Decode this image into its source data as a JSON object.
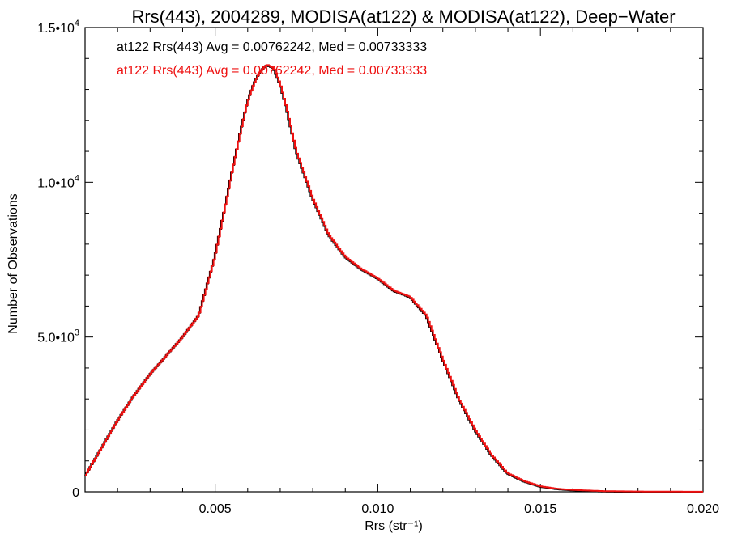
{
  "chart_data": {
    "type": "line",
    "title": "Rrs(443), 2004289, MODISA(at122) & MODISA(at122), Deep−Water",
    "xlabel": "Rrs (str⁻¹)",
    "ylabel": "Number of Observations",
    "xlim": [
      0.001,
      0.02
    ],
    "ylim": [
      0,
      15000
    ],
    "x_ticks": [
      0.005,
      0.01,
      0.015,
      0.02
    ],
    "x_tick_labels": [
      "0.005",
      "0.010",
      "0.015",
      "0.020"
    ],
    "y_ticks": [
      0,
      5000,
      10000,
      15000
    ],
    "y_tick_labels": [
      {
        "mant": "0",
        "exp": ""
      },
      {
        "mant": "5.0•10",
        "exp": "3"
      },
      {
        "mant": "1.0•10",
        "exp": "4"
      },
      {
        "mant": "1.5•10",
        "exp": "4"
      }
    ],
    "annotations": [
      {
        "text": "at122 Rrs(443) Avg = 0.00762242, Med = 0.00733333",
        "color": "#000000"
      },
      {
        "text": "at122 Rrs(443) Avg = 0.00762242, Med = 0.00733333",
        "color": "#ee1111"
      }
    ],
    "series": [
      {
        "color_back": "#000000",
        "color_front": "#ee1111",
        "x": [
          0.001,
          0.0015,
          0.002,
          0.0025,
          0.003,
          0.0035,
          0.004,
          0.0045,
          0.005,
          0.0055,
          0.0058,
          0.006,
          0.0062,
          0.0064,
          0.0066,
          0.0068,
          0.007,
          0.0072,
          0.0075,
          0.008,
          0.0085,
          0.009,
          0.0095,
          0.01,
          0.0105,
          0.011,
          0.0115,
          0.012,
          0.0125,
          0.013,
          0.0135,
          0.014,
          0.0145,
          0.015,
          0.0155,
          0.016,
          0.017,
          0.018,
          0.019,
          0.02
        ],
        "y": [
          500,
          1400,
          2300,
          3100,
          3800,
          4400,
          5000,
          5700,
          7600,
          10200,
          11700,
          12600,
          13200,
          13600,
          13800,
          13700,
          13200,
          12400,
          11000,
          9500,
          8300,
          7600,
          7200,
          6900,
          6500,
          6300,
          5700,
          4300,
          3000,
          2000,
          1200,
          600,
          350,
          180,
          100,
          60,
          20,
          10,
          5,
          2
        ]
      }
    ]
  }
}
